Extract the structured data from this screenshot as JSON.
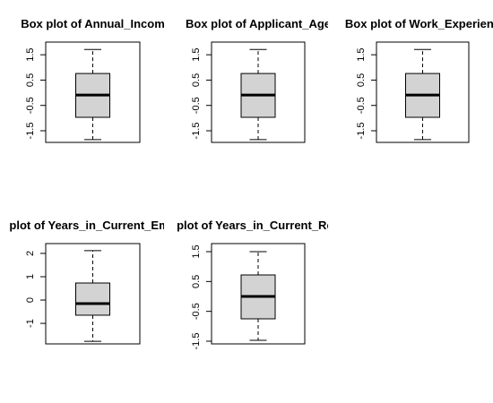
{
  "chart_data": [
    {
      "type": "box",
      "title": "Box plot of Annual_Incom",
      "ylim": [
        -1.96,
        2.0
      ],
      "yticks": [
        -1.5,
        -0.5,
        0.5,
        1.5
      ],
      "color": "#d3d3d3",
      "stats": {
        "whislo": -1.85,
        "q1": -0.97,
        "med": -0.09,
        "q3": 0.76,
        "whishi": 1.71
      }
    },
    {
      "type": "box",
      "title": "Box plot of Applicant_Age",
      "ylim": [
        -1.96,
        2.0
      ],
      "yticks": [
        -1.5,
        -0.5,
        0.5,
        1.5
      ],
      "color": "#d3d3d3",
      "stats": {
        "whislo": -1.85,
        "q1": -0.97,
        "med": -0.09,
        "q3": 0.76,
        "whishi": 1.71
      }
    },
    {
      "type": "box",
      "title": "Box plot of Work_Experienc",
      "ylim": [
        -1.96,
        2.0
      ],
      "yticks": [
        -1.5,
        -0.5,
        0.5,
        1.5
      ],
      "color": "#d3d3d3",
      "stats": {
        "whislo": -1.85,
        "q1": -0.97,
        "med": -0.09,
        "q3": 0.76,
        "whishi": 1.71
      }
    },
    {
      "type": "box",
      "title": "plot of Years_in_Current_Emp",
      "ylim": [
        -1.88,
        2.42
      ],
      "yticks": [
        -1,
        0,
        1,
        2
      ],
      "color": "#d3d3d3",
      "stats": {
        "whislo": -1.77,
        "q1": -0.65,
        "med": -0.15,
        "q3": 0.73,
        "whishi": 2.12
      }
    },
    {
      "type": "box",
      "title": "plot of Years_in_Current_Res",
      "ylim": [
        -1.59,
        1.77
      ],
      "yticks": [
        -1.5,
        -0.5,
        0.5,
        1.5
      ],
      "color": "#d3d3d3",
      "stats": {
        "whislo": -1.47,
        "q1": -0.75,
        "med": 0.0,
        "q3": 0.72,
        "whishi": 1.5
      }
    }
  ]
}
